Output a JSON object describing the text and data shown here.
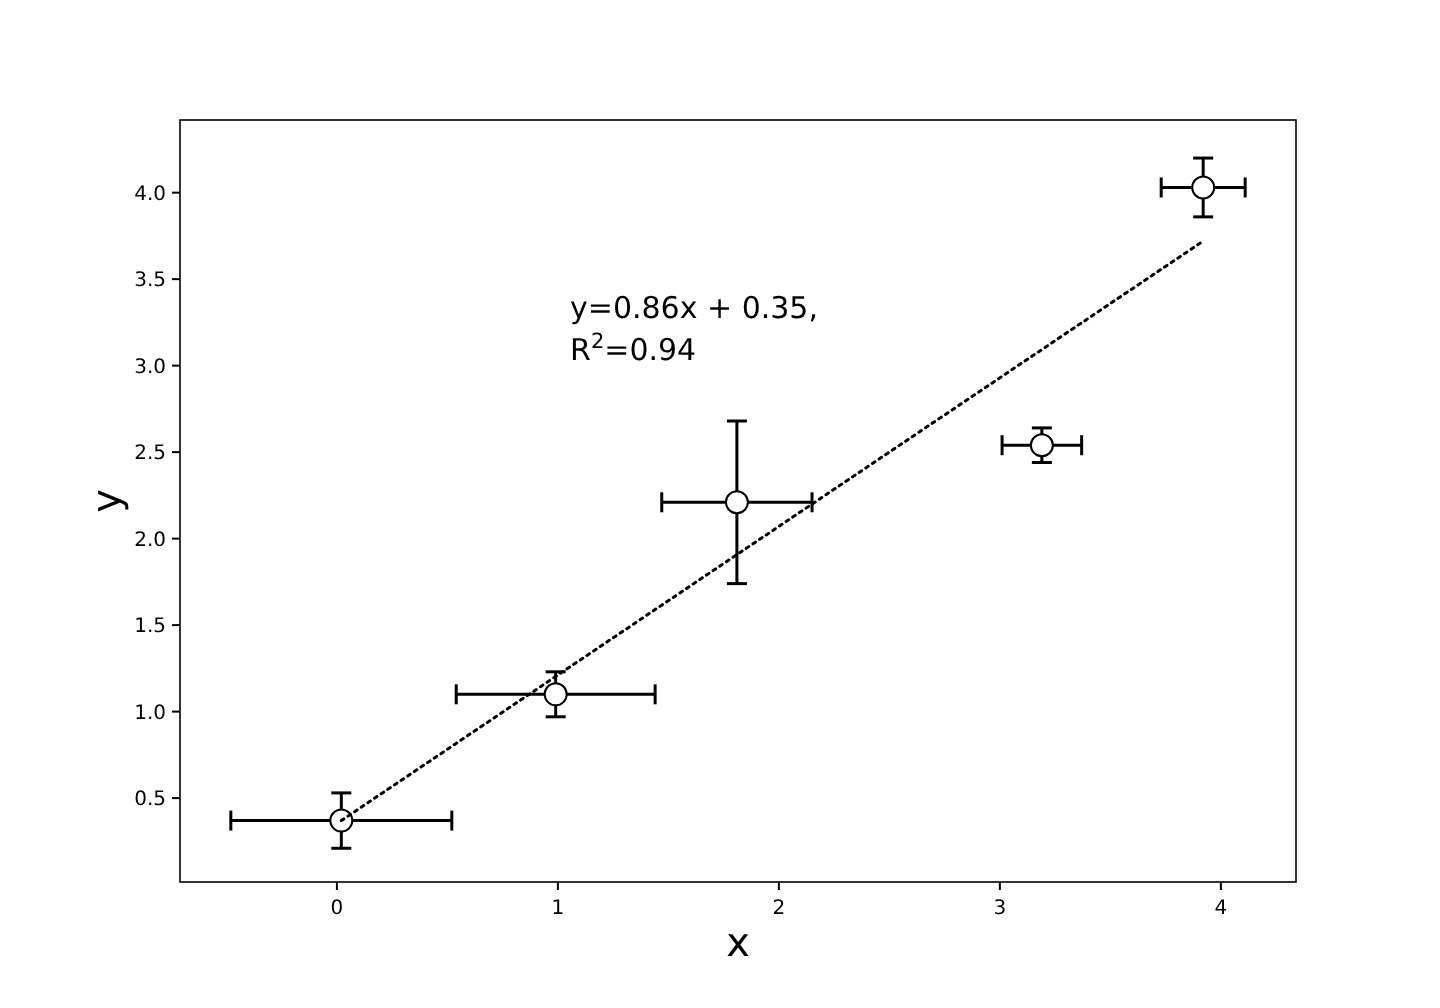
{
  "chart_data": {
    "type": "scatter",
    "xlabel": "x",
    "ylabel": "y",
    "xlim": [
      -0.71,
      4.34
    ],
    "ylim": [
      0.015,
      4.42
    ],
    "xticks": [
      0,
      1,
      2,
      3,
      4
    ],
    "yticks": [
      {
        "value": 0.5,
        "label": "0.5"
      },
      {
        "value": 1,
        "label": "1.0"
      },
      {
        "value": 1.5,
        "label": "1.5"
      },
      {
        "value": 2,
        "label": "2.0"
      },
      {
        "value": 2.5,
        "label": "2.5"
      },
      {
        "value": 3,
        "label": "3.0"
      },
      {
        "value": 3.5,
        "label": "3.5"
      },
      {
        "value": 4,
        "label": "4.0"
      }
    ],
    "grid": false,
    "series": [
      {
        "color": "#000000",
        "marker": "circle",
        "x": [
          0.02,
          0.99,
          1.81,
          3.19,
          3.92
        ],
        "values": [
          0.37,
          1.1,
          2.21,
          2.54,
          4.03
        ],
        "errors": [
          0.16,
          0.13,
          0.47,
          0.1,
          0.17
        ],
        "xerrors": [
          0.5,
          0.45,
          0.34,
          0.18,
          0.19
        ]
      },
      {
        "type": "line",
        "color": "#000000",
        "line_style": "dotted",
        "x": [
          0.02,
          3.92
        ],
        "values": [
          0.37,
          3.72
        ]
      }
    ],
    "annotations": [
      "y=0.86x + 0.35,",
      "R$^{2}$=0.94"
    ]
  }
}
